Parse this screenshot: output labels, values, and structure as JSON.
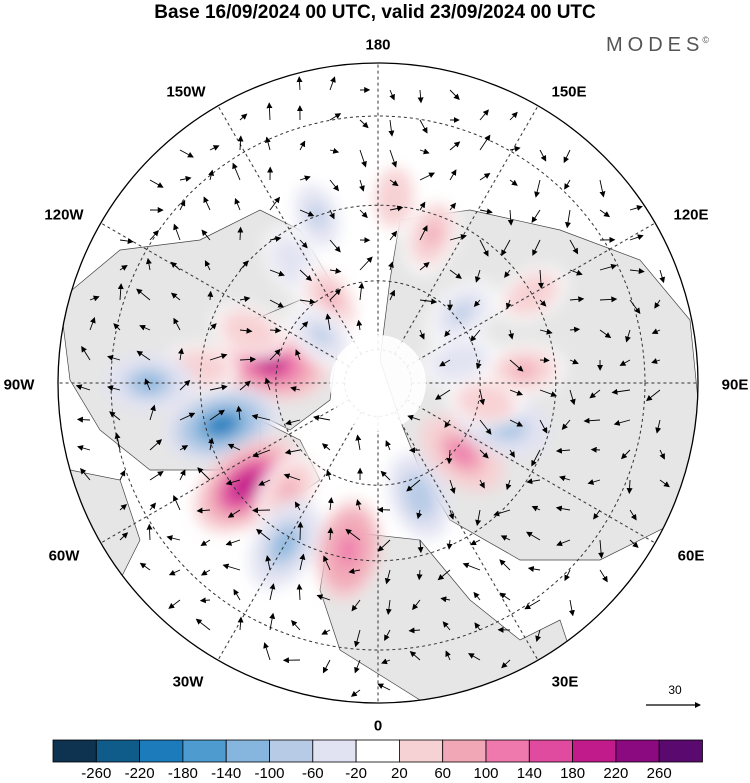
{
  "title": "Base 16/09/2024 00 UTC, valid 23/09/2024 00 UTC",
  "brand": "MODES",
  "brand_mark": "©",
  "longitude_labels": {
    "lon_180": "180",
    "lon_150e": "150E",
    "lon_120e": "120E",
    "lon_90e": "90E",
    "lon_60e": "60E",
    "lon_30e": "30E",
    "lon_0": "0",
    "lon_30w": "30W",
    "lon_60w": "60W",
    "lon_90w": "90W",
    "lon_120w": "120W",
    "lon_150w": "150W"
  },
  "vector_reference": {
    "value": "30"
  },
  "colorbar": {
    "levels": [
      "-260",
      "-220",
      "-180",
      "-140",
      "-100",
      "-60",
      "-20",
      "20",
      "60",
      "100",
      "140",
      "180",
      "220",
      "260"
    ],
    "colors": [
      "#0d3350",
      "#0f5c8a",
      "#1b7bbb",
      "#4d9bcf",
      "#86b6dd",
      "#b7cbe6",
      "#e2e3f2",
      "#ffffff",
      "#f7d2d4",
      "#f2a7b7",
      "#ef79ad",
      "#e04a9f",
      "#c11a8b",
      "#8c0a80",
      "#5a0a6f"
    ]
  },
  "map": {
    "land_color": "#e6e6e6",
    "ocean_color": "#ffffff",
    "anomalies": [
      {
        "lon": -100,
        "lat": 58,
        "value": 230
      },
      {
        "lon": -112,
        "lat": 50,
        "value": 70
      },
      {
        "lon": -95,
        "lat": 40,
        "value": 60
      },
      {
        "lon": -75,
        "lat": 44,
        "value": -230
      },
      {
        "lon": -90,
        "lat": 28,
        "value": -130
      },
      {
        "lon": -52,
        "lat": 43,
        "value": 250
      },
      {
        "lon": -40,
        "lat": 50,
        "value": 90
      },
      {
        "lon": -30,
        "lat": 38,
        "value": -150
      },
      {
        "lon": -10,
        "lat": 42,
        "value": 170
      },
      {
        "lon": 20,
        "lat": 55,
        "value": -120
      },
      {
        "lon": 50,
        "lat": 58,
        "value": 150
      },
      {
        "lon": 72,
        "lat": 52,
        "value": -150
      },
      {
        "lon": 95,
        "lat": 48,
        "value": 90
      },
      {
        "lon": 80,
        "lat": 58,
        "value": 70
      },
      {
        "lon": 130,
        "lat": 58,
        "value": -80
      },
      {
        "lon": 160,
        "lat": 45,
        "value": 90
      },
      {
        "lon": 175,
        "lat": 38,
        "value": 70
      },
      {
        "lon": -160,
        "lat": 40,
        "value": -90
      },
      {
        "lon": -145,
        "lat": 48,
        "value": -70
      },
      {
        "lon": -150,
        "lat": 62,
        "value": 90
      },
      {
        "lon": -130,
        "lat": 68,
        "value": -80
      },
      {
        "lon": 120,
        "lat": 40,
        "value": 60
      },
      {
        "lon": 105,
        "lat": 65,
        "value": -70
      }
    ]
  }
}
